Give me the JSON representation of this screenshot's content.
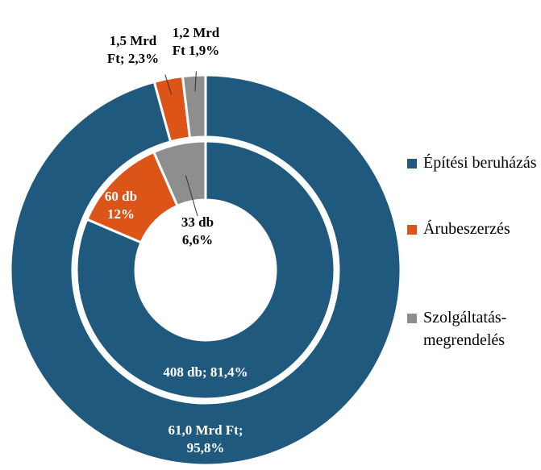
{
  "chart_data": {
    "type": "donut",
    "categories": [
      "Építési beruházás",
      "Árubeszerzés",
      "Szolgáltatás-megrendelés"
    ],
    "colors": [
      "#1f5a7e",
      "#dd5418",
      "#8e8e8e"
    ],
    "series": [
      {
        "values": [
          61.0,
          1.5,
          1.2
        ],
        "value_labels": [
          "61,0 Mrd Ft; 95,8%",
          "1,5 Mrd Ft; 2,3%",
          "1,2 Mrd Ft 1,9%"
        ]
      },
      {
        "values": [
          408,
          60,
          33
        ],
        "value_labels": [
          "408 db; 81,4%",
          "60 db 12%",
          "33 db 6,6%"
        ]
      }
    ],
    "legend": "right"
  }
}
